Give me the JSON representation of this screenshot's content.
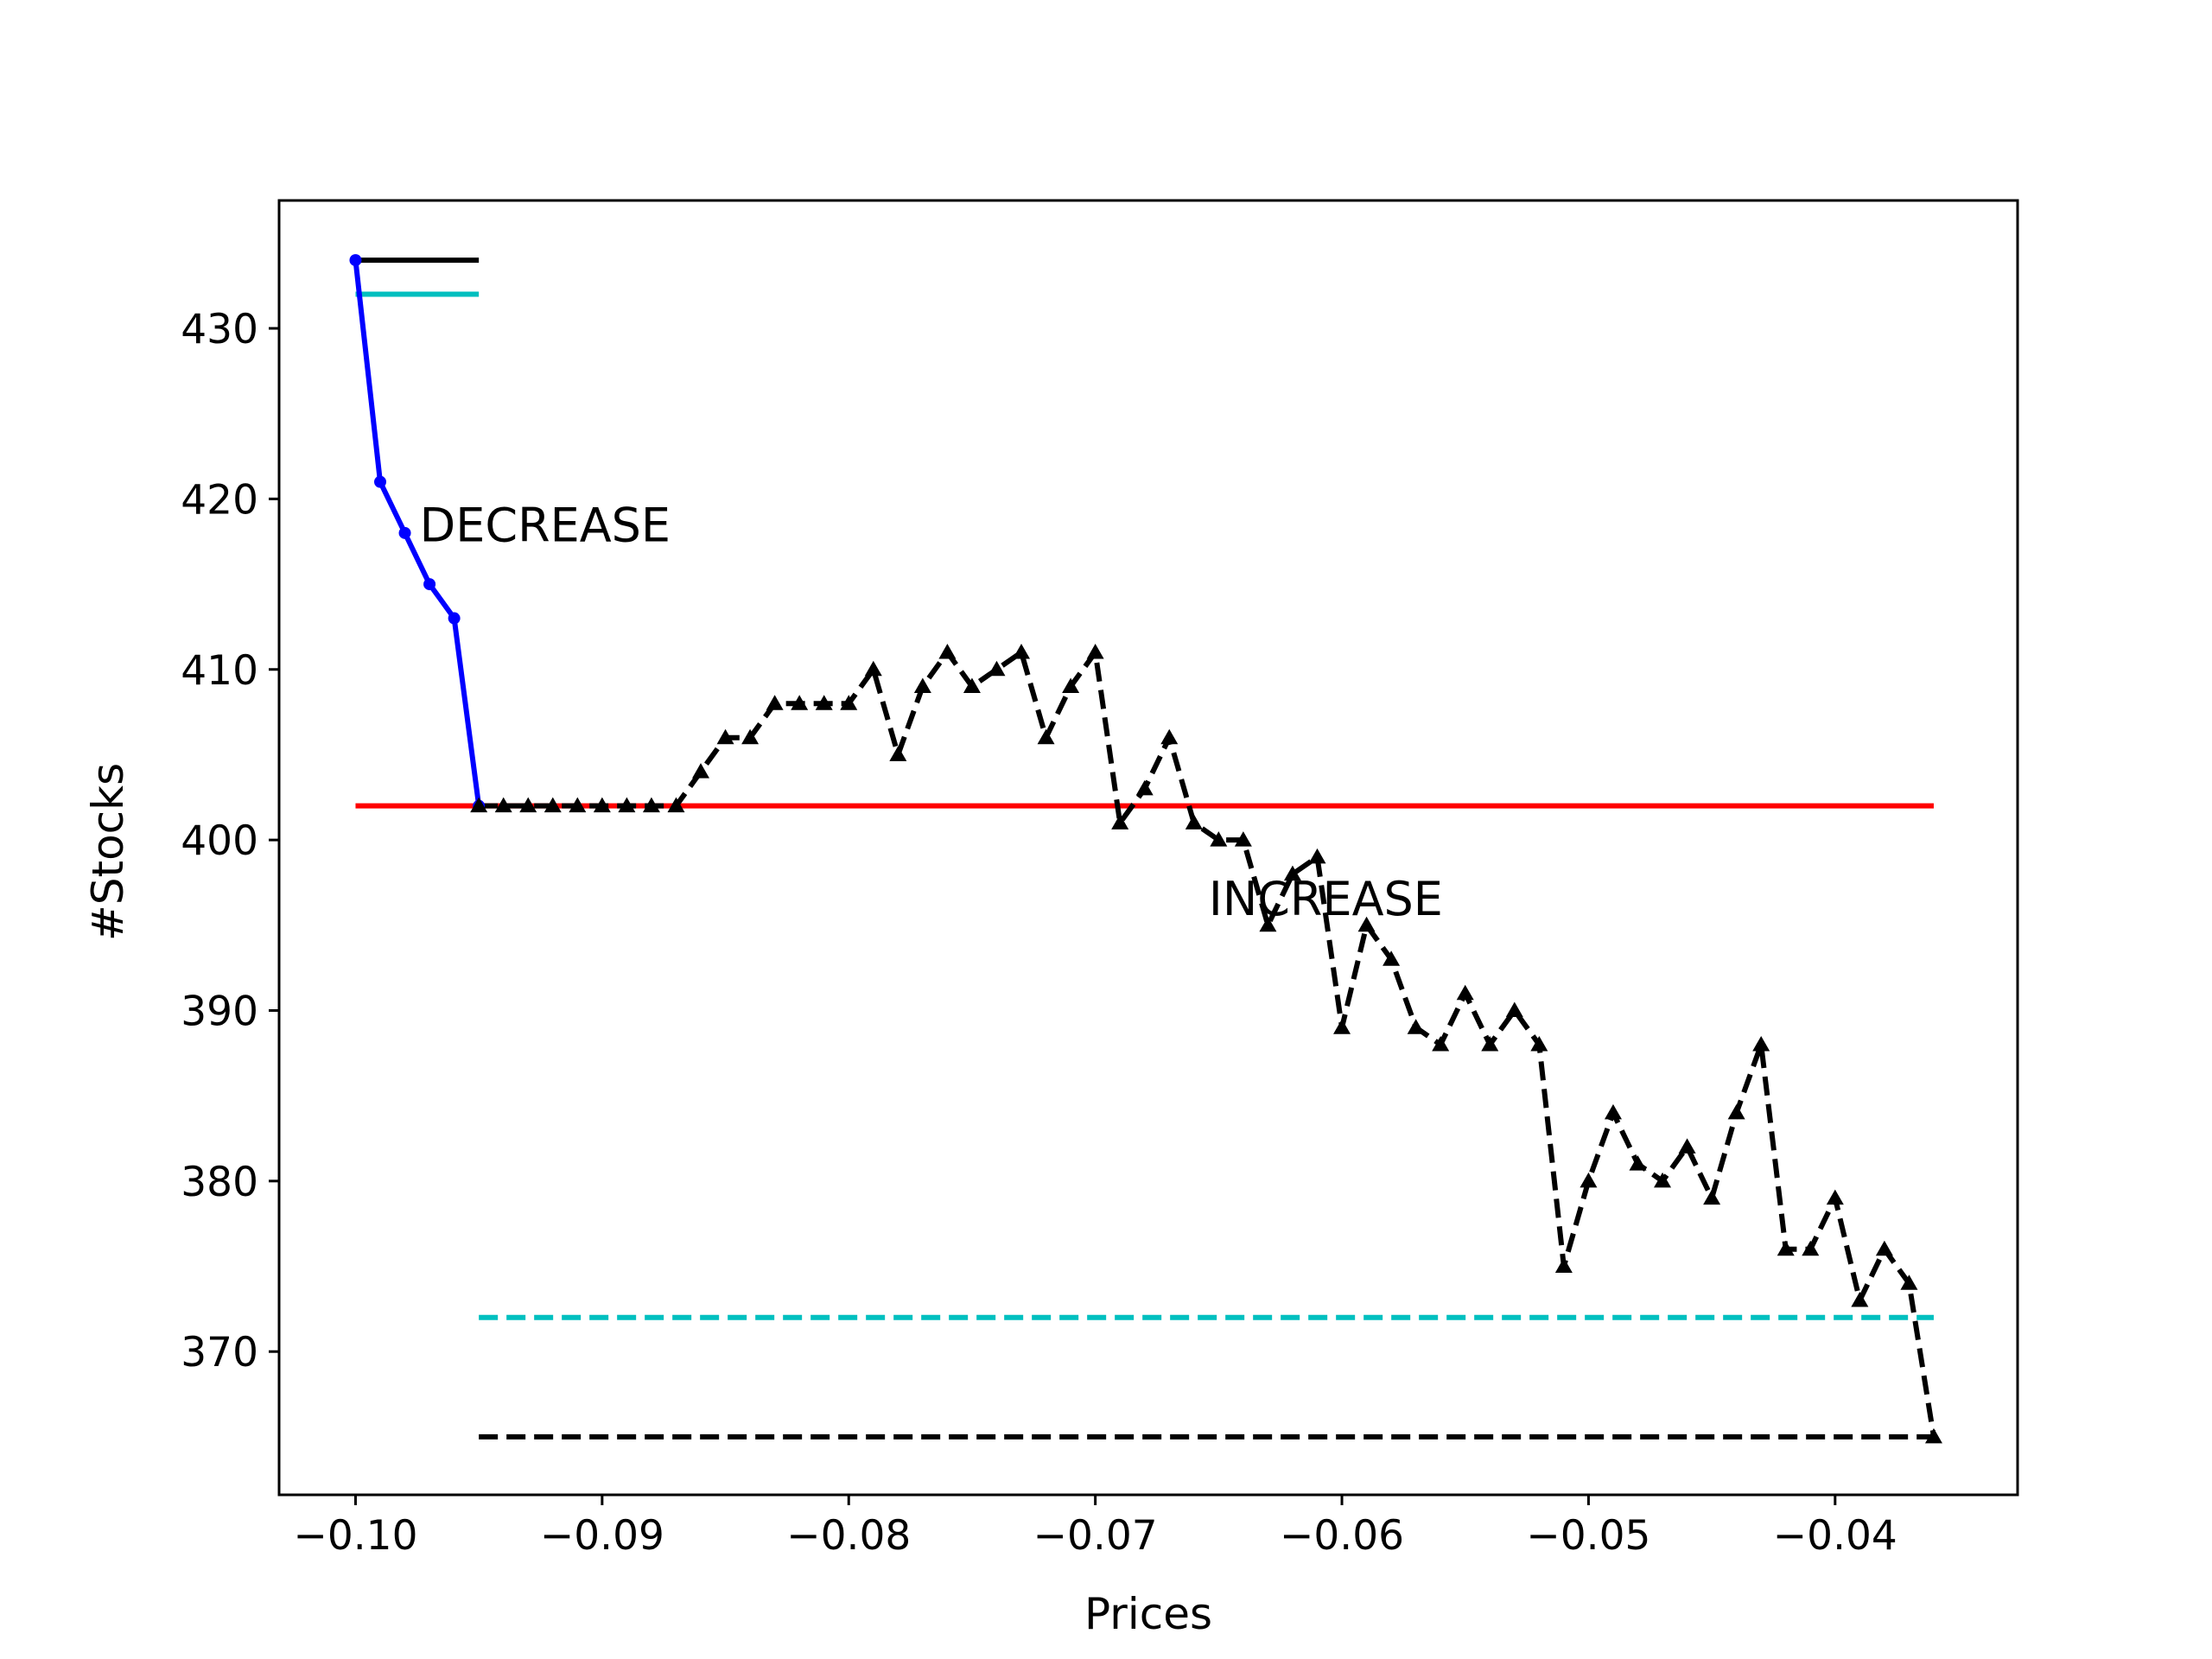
{
  "chart_data": {
    "type": "line",
    "title": "",
    "xlabel": "Prices",
    "ylabel": "#Stocks",
    "xlim": [
      -0.1031,
      -0.0326
    ],
    "ylim": [
      361.6,
      437.5
    ],
    "xticks": [
      -0.1,
      -0.09,
      -0.08,
      -0.07,
      -0.06,
      -0.05,
      -0.04
    ],
    "xtick_labels": [
      "−0.10",
      "−0.09",
      "−0.08",
      "−0.07",
      "−0.06",
      "−0.05",
      "−0.04"
    ],
    "yticks": [
      370,
      380,
      390,
      400,
      410,
      420,
      430
    ],
    "ytick_labels": [
      "370",
      "380",
      "390",
      "400",
      "410",
      "420",
      "430"
    ],
    "grid": false,
    "legend": false,
    "series": [
      {
        "color": "#0000ff",
        "style": "solid",
        "marker": "dot",
        "x": [
          -0.1,
          -0.099,
          -0.098,
          -0.097,
          -0.096,
          -0.095
        ],
        "y": [
          434,
          421,
          418,
          415,
          413,
          402
        ]
      },
      {
        "color": "#000000",
        "style": "dashed",
        "marker": "triangle",
        "x": [
          -0.095,
          -0.094,
          -0.093,
          -0.092,
          -0.091,
          -0.09,
          -0.089,
          -0.088,
          -0.087,
          -0.086,
          -0.085,
          -0.084,
          -0.083,
          -0.082,
          -0.081,
          -0.08,
          -0.079,
          -0.078,
          -0.077,
          -0.076,
          -0.075,
          -0.074,
          -0.073,
          -0.072,
          -0.071,
          -0.07,
          -0.069,
          -0.068,
          -0.067,
          -0.066,
          -0.065,
          -0.064,
          -0.063,
          -0.062,
          -0.061,
          -0.06,
          -0.059,
          -0.058,
          -0.057,
          -0.056,
          -0.055,
          -0.054,
          -0.053,
          -0.052,
          -0.051,
          -0.05,
          -0.049,
          -0.048,
          -0.047,
          -0.046,
          -0.045,
          -0.044,
          -0.043,
          -0.042,
          -0.041,
          -0.04,
          -0.039,
          -0.038,
          -0.037,
          -0.036
        ],
        "y": [
          402,
          402,
          402,
          402,
          402,
          402,
          402,
          402,
          402,
          404,
          406,
          406,
          408,
          408,
          408,
          408,
          410,
          405,
          409,
          411,
          409,
          410,
          411,
          406,
          409,
          411,
          401,
          403,
          406,
          401,
          400,
          400,
          395,
          398,
          399,
          389,
          395,
          393,
          389,
          388,
          391,
          388,
          390,
          388,
          375,
          380,
          384,
          381,
          380,
          382,
          379,
          384,
          388,
          376,
          376,
          379,
          373,
          376,
          374,
          365
        ]
      }
    ],
    "reference_lines": [
      {
        "color": "#000000",
        "style": "solid",
        "x": [
          -0.1,
          -0.095
        ],
        "y": 434
      },
      {
        "color": "#00bfbf",
        "style": "solid",
        "x": [
          -0.1,
          -0.095
        ],
        "y": 432
      },
      {
        "color": "#ff0000",
        "style": "solid",
        "x": [
          -0.1,
          -0.036
        ],
        "y": 402
      },
      {
        "color": "#00bfbf",
        "style": "dashed",
        "x": [
          -0.095,
          -0.036
        ],
        "y": 372
      },
      {
        "color": "#000000",
        "style": "dashed",
        "x": [
          -0.095,
          -0.036
        ],
        "y": 365
      }
    ],
    "annotations": [
      {
        "text": "DECREASE",
        "x": -0.0974,
        "y": 417.5
      },
      {
        "text": "INCREASE",
        "x": -0.0654,
        "y": 395.6
      }
    ]
  }
}
